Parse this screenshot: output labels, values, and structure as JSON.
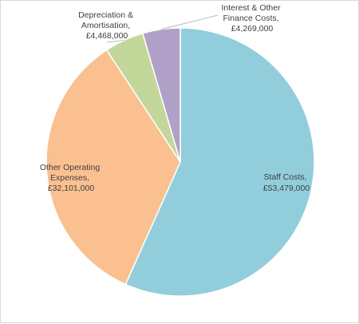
{
  "chart_data": {
    "type": "pie",
    "title": "",
    "legend": "none",
    "slices": [
      {
        "label": "Staff Costs",
        "value": 53479000,
        "value_label": "£53,479,000",
        "color": "#92cddc"
      },
      {
        "label": "Other Operating Expenses",
        "value": 32101000,
        "value_label": "£32,101,000",
        "color": "#fac090"
      },
      {
        "label": "Depreciation & Amortisation",
        "value": 4468000,
        "value_label": "£4,468,000",
        "color": "#c4d79b"
      },
      {
        "label": "Interest & Other Finance Costs",
        "value": 4269000,
        "value_label": "£4,269,000",
        "color": "#b1a0c7"
      }
    ],
    "data_labels": [
      {
        "lines": [
          "Staff Costs,",
          "£53,479,000"
        ]
      },
      {
        "lines": [
          "Other Operating",
          "Expenses,",
          "£32,101,000"
        ]
      },
      {
        "lines": [
          "Depreciation &",
          "Amortisation,",
          "£4,468,000"
        ]
      },
      {
        "lines": [
          "Interest & Other",
          "Finance Costs,",
          "£4,269,000"
        ]
      }
    ]
  }
}
